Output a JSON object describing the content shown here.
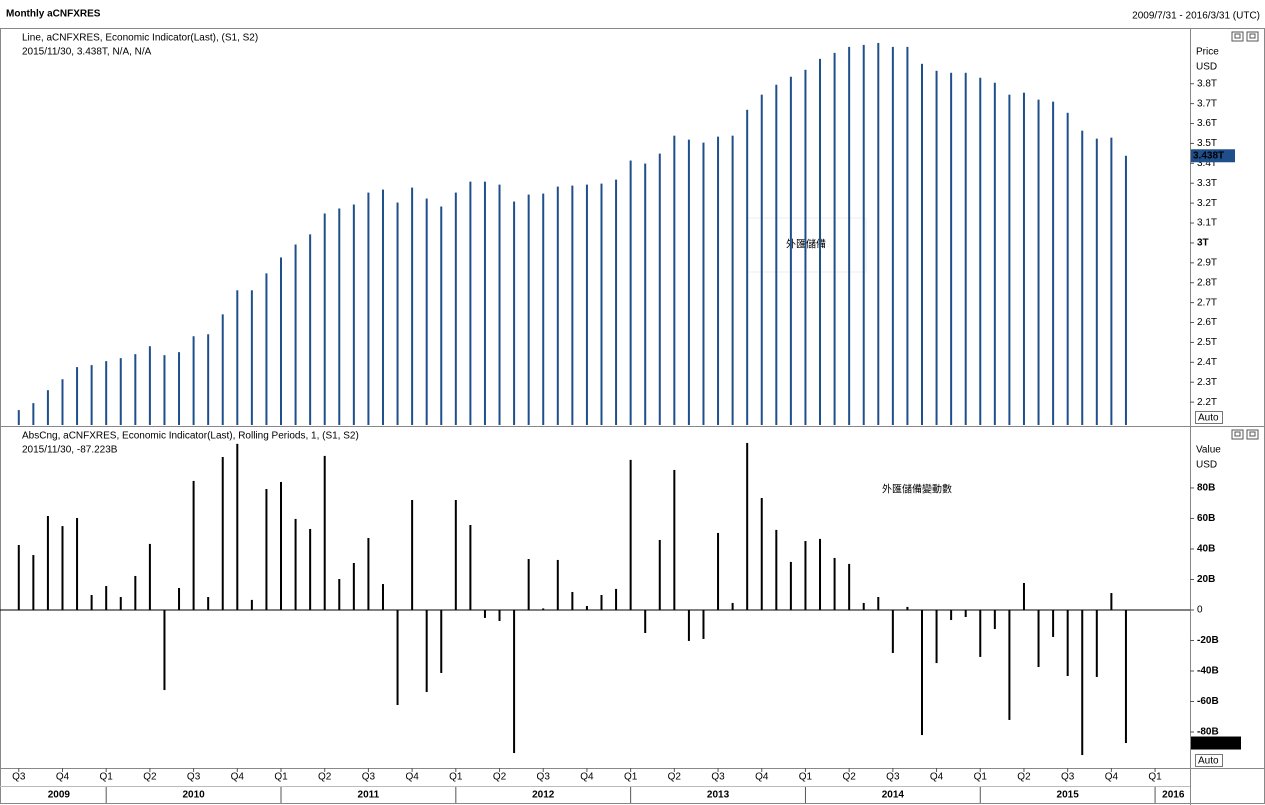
{
  "header": {
    "title": "Monthly aCNFXRES",
    "range": "2009/7/31 - 2016/3/31 (UTC)"
  },
  "x_axis": {
    "categories": [
      "Q3",
      null,
      null,
      "Q4",
      null,
      null,
      "Q1",
      null,
      null,
      "Q2",
      null,
      null,
      "Q3",
      null,
      null,
      "Q4",
      null,
      null,
      "Q1",
      null,
      null,
      "Q2",
      null,
      null,
      "Q3",
      null,
      null,
      "Q4",
      null,
      null,
      "Q1",
      null,
      null,
      "Q2",
      null,
      null,
      "Q3",
      null,
      null,
      "Q4",
      null,
      null,
      "Q1",
      null,
      null,
      "Q2",
      null,
      null,
      "Q3",
      null,
      null,
      "Q4",
      null,
      null,
      "Q1",
      null,
      null,
      "Q2",
      null,
      null,
      "Q3",
      null,
      null,
      "Q4",
      null,
      null,
      "Q1",
      null,
      null,
      "Q2",
      null,
      null,
      "Q3",
      null,
      null,
      "Q4",
      null,
      null,
      "Q1",
      null,
      null
    ],
    "years": [
      "2009",
      "2010",
      "2011",
      "2012",
      "2013",
      "2014",
      "2015",
      "2016"
    ]
  },
  "chart_data": [
    {
      "type": "bar",
      "legend": "Line, aCNFXRES, Economic Indicator(Last), (S1, S2)",
      "info": "2015/11/30, 3.438T, N/A, N/A",
      "annotation": "外匯儲備",
      "axis_title": "Price",
      "axis_unit": "USD",
      "scale_mode": "Auto",
      "color": "#1f4f8b",
      "values": [
        2.16,
        2.195,
        2.26,
        2.315,
        2.376,
        2.386,
        2.406,
        2.421,
        2.441,
        2.481,
        2.436,
        2.451,
        2.531,
        2.541,
        2.641,
        2.762,
        2.762,
        2.847,
        2.927,
        2.992,
        3.043,
        3.148,
        3.173,
        3.193,
        3.253,
        3.268,
        3.203,
        3.278,
        3.223,
        3.183,
        3.253,
        3.308,
        3.308,
        3.293,
        3.208,
        3.243,
        3.248,
        3.283,
        3.288,
        3.293,
        3.298,
        3.318,
        3.414,
        3.399,
        3.449,
        3.539,
        3.519,
        3.504,
        3.534,
        3.539,
        3.669,
        3.745,
        3.795,
        3.835,
        3.87,
        3.925,
        3.955,
        3.985,
        3.995,
        4.005,
        3.985,
        3.985,
        3.9,
        3.865,
        3.855,
        3.855,
        3.83,
        3.805,
        3.745,
        3.755,
        3.72,
        3.71,
        3.654,
        3.564,
        3.524,
        3.529,
        3.438,
        null,
        null,
        null,
        null
      ],
      "last_value_label": "3.438T",
      "ylim": [
        2.085,
        4.07
      ],
      "yticks": [
        {
          "value": 2.2,
          "label": "2.2T"
        },
        {
          "value": 2.3,
          "label": "2.3T"
        },
        {
          "value": 2.4,
          "label": "2.4T"
        },
        {
          "value": 2.5,
          "label": "2.5T"
        },
        {
          "value": 2.6,
          "label": "2.6T"
        },
        {
          "value": 2.7,
          "label": "2.7T"
        },
        {
          "value": 2.8,
          "label": "2.8T"
        },
        {
          "value": 2.9,
          "label": "2.9T"
        },
        {
          "value": 3,
          "label": "3T"
        },
        {
          "value": 3.1,
          "label": "3.1T"
        },
        {
          "value": 3.2,
          "label": "3.2T"
        },
        {
          "value": 3.3,
          "label": "3.3T"
        },
        {
          "value": 3.4,
          "label": "3.4T"
        },
        {
          "value": 3.5,
          "label": "3.5T"
        },
        {
          "value": 3.6,
          "label": "3.6T"
        },
        {
          "value": 3.7,
          "label": "3.7T"
        },
        {
          "value": 3.8,
          "label": "3.8T"
        }
      ]
    },
    {
      "type": "bar",
      "legend": "AbsCng, aCNFXRES, Economic Indicator(Last), Rolling Periods, 1, (S1, S2)",
      "info": "2015/11/30, -87.223B",
      "annotation": "外匯儲備變動數",
      "axis_title": "Value",
      "axis_unit": "USD",
      "scale_mode": "Auto",
      "color": "#000000",
      "values": [
        42.6,
        36,
        61.6,
        55,
        60.3,
        9.8,
        15.7,
        8.5,
        22.3,
        43.3,
        -52.5,
        14.4,
        84.6,
        8.5,
        100.3,
        108.9,
        6.6,
        79.3,
        83.9,
        59.7,
        53.1,
        101,
        20.3,
        30.8,
        47.2,
        17,
        -62.3,
        72.1,
        -53.8,
        -41.3,
        72.1,
        55.7,
        -5.2,
        -7.2,
        -93.8,
        33.4,
        1,
        32.8,
        11.8,
        2.6,
        9.8,
        13.8,
        98.4,
        -15.1,
        45.9,
        91.8,
        -20.3,
        -19,
        50.5,
        4.6,
        109.5,
        73.4,
        52.5,
        31.5,
        45.2,
        46.6,
        34.1,
        30.2,
        4.6,
        8.5,
        -28.2,
        2,
        -82,
        -34.8,
        -6.6,
        -4.6,
        -30.8,
        -12.5,
        -72.1,
        17.7,
        -37.4,
        -17.7,
        -43.3,
        -95.1,
        -43.9,
        11.1,
        -87.223,
        null,
        null,
        null,
        null
      ],
      "last_value_label": "-87.223B",
      "ylim": [
        -103.6,
        119.3
      ],
      "yticks": [
        {
          "value": 80,
          "label": "80B"
        },
        {
          "value": 60,
          "label": "60B"
        },
        {
          "value": 40,
          "label": "40B"
        },
        {
          "value": 20,
          "label": "20B"
        },
        0,
        {
          "value": -20,
          "label": "-20B"
        },
        {
          "value": -40,
          "label": "-40B"
        },
        {
          "value": -60,
          "label": "-60B"
        },
        {
          "value": -80,
          "label": "-80B"
        }
      ]
    }
  ]
}
